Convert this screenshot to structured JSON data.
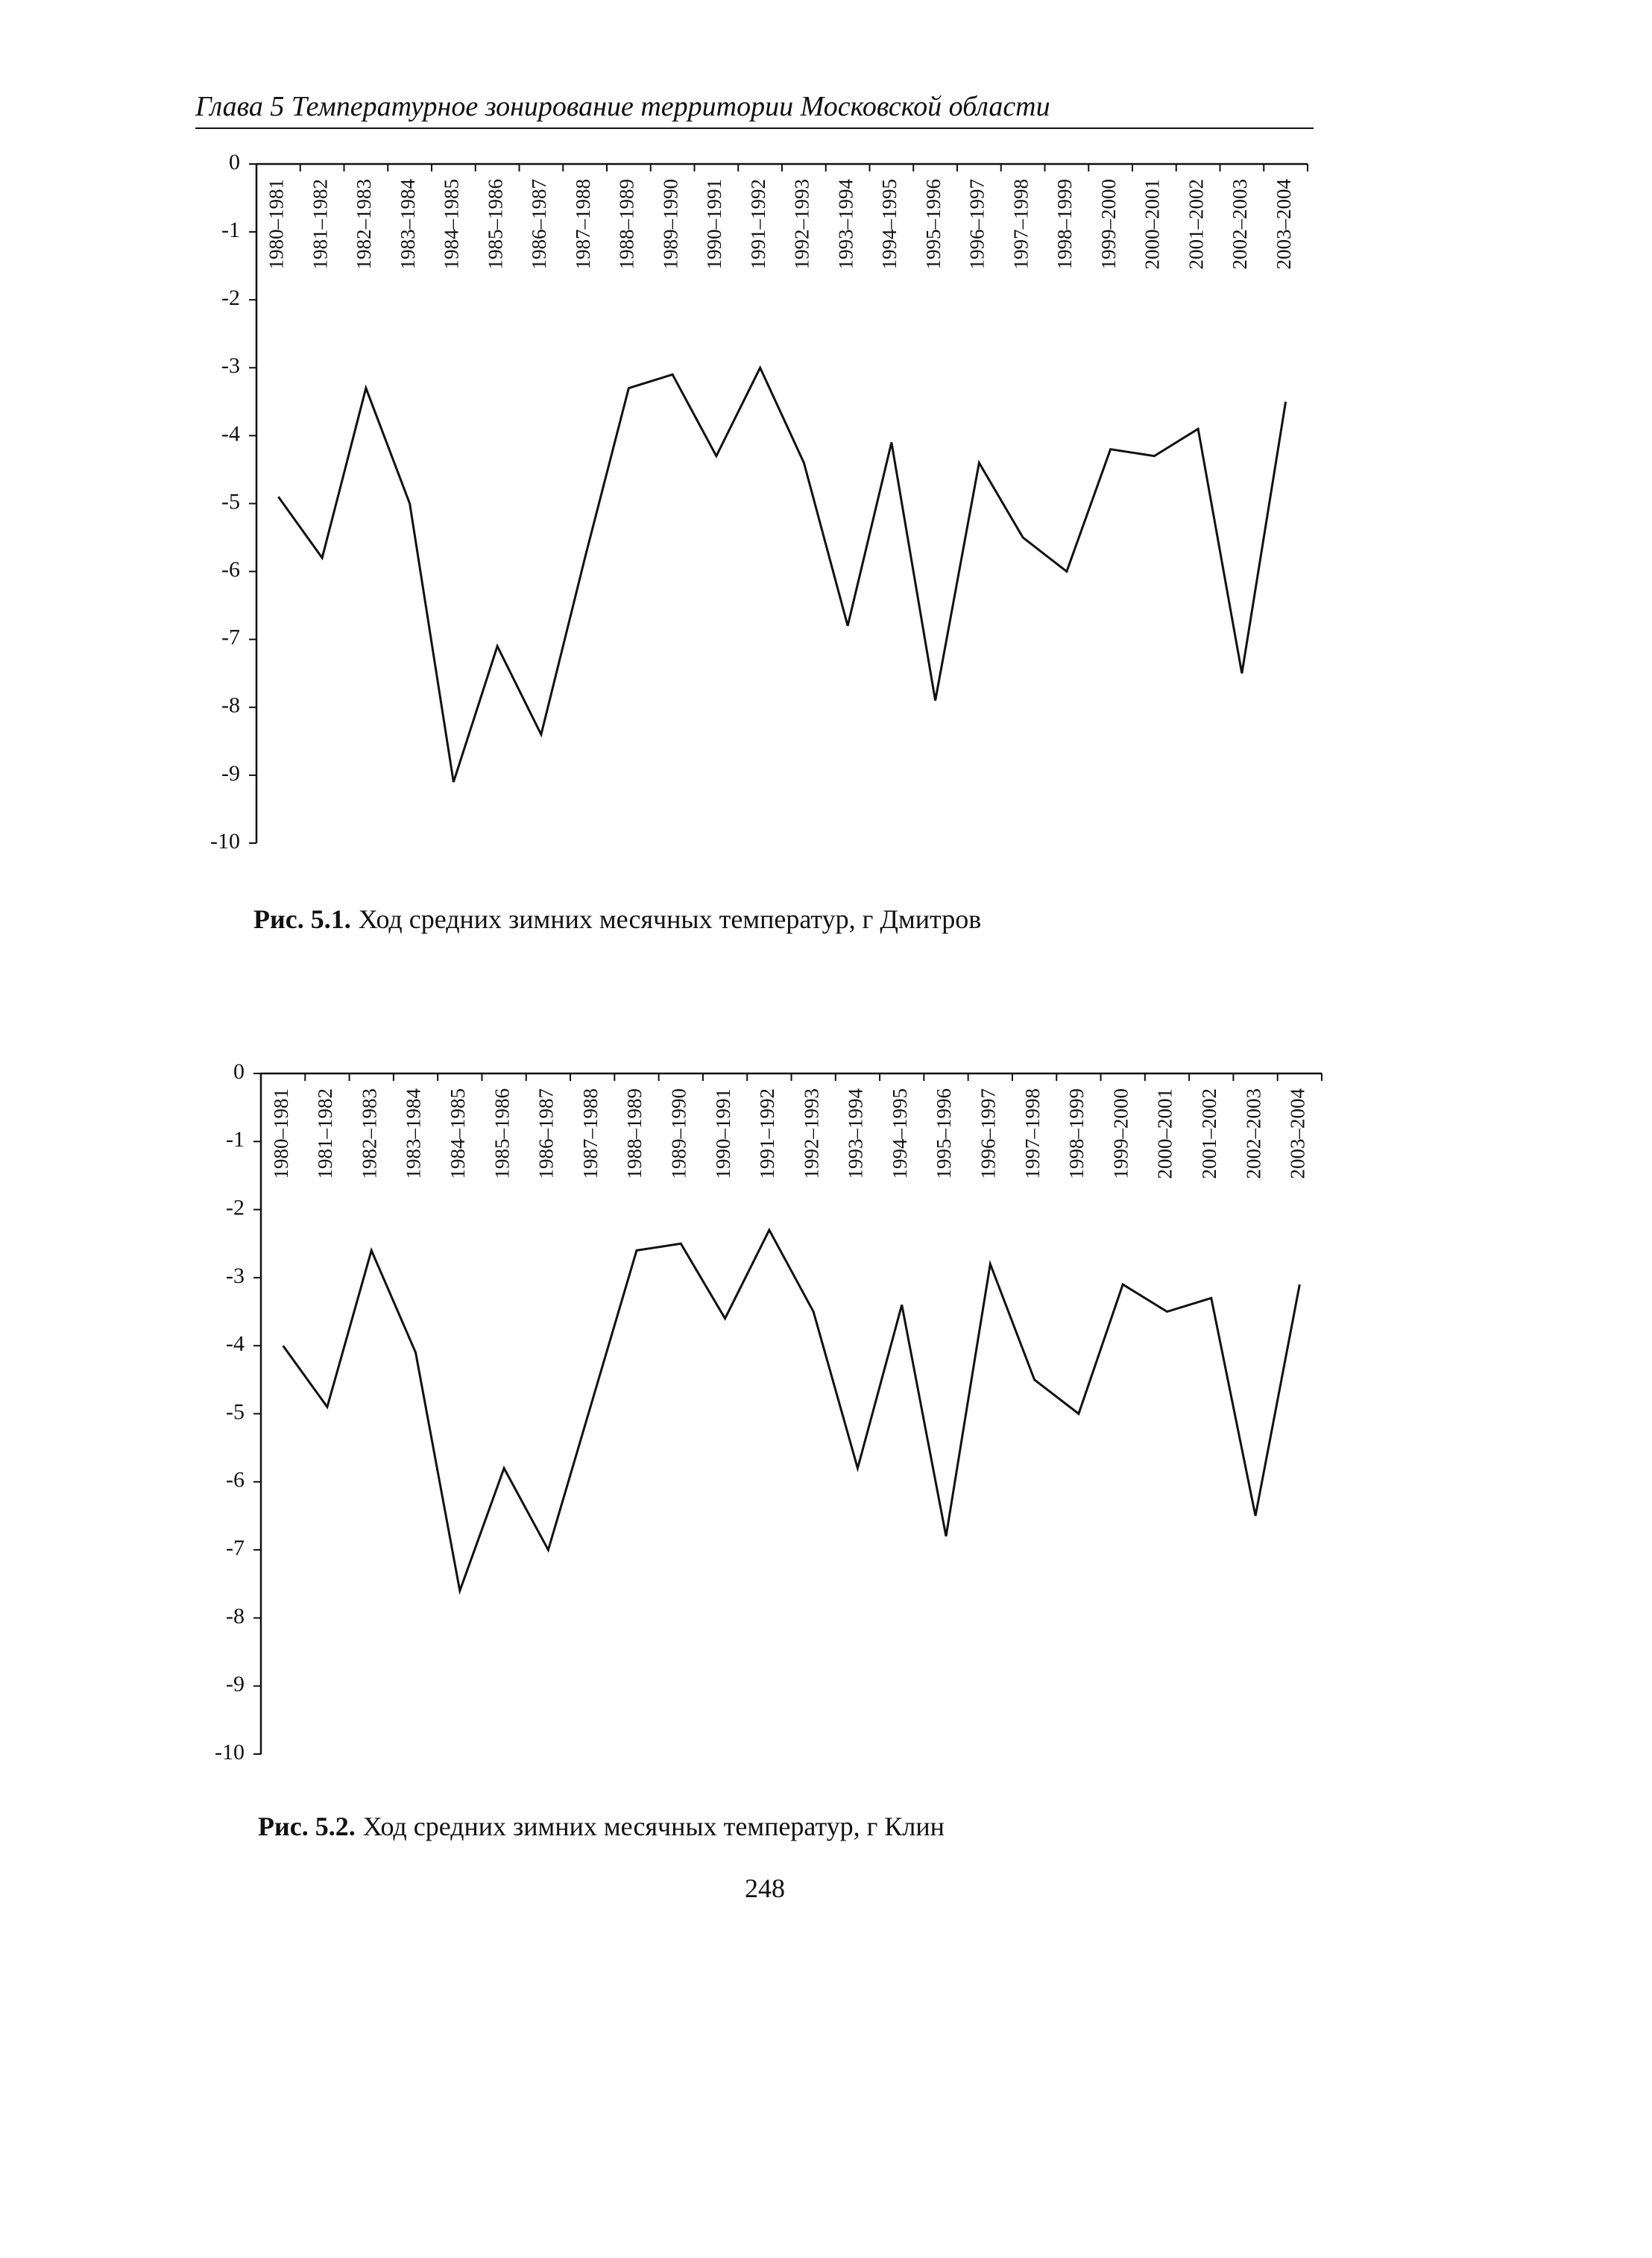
{
  "header": "Глава 5  Температурное зонирование территории Московской области",
  "page_number": "248",
  "chart_data": [
    {
      "type": "line",
      "caption_label": "Рис. 5.1.",
      "caption": "Ход средних зимних месячных температур, г  Дмитров",
      "categories": [
        "1980–1981",
        "1981–1982",
        "1982–1983",
        "1983–1984",
        "1984–1985",
        "1985–1986",
        "1986–1987",
        "1987–1988",
        "1988–1989",
        "1989–1990",
        "1990–1991",
        "1991–1992",
        "1992–1993",
        "1993–1994",
        "1994–1995",
        "1995–1996",
        "1996–1997",
        "1997–1998",
        "1998–1999",
        "1999–2000",
        "2000–2001",
        "2001–2002",
        "2002–2003",
        "2003–2004"
      ],
      "values": [
        -4.9,
        -5.8,
        -3.3,
        -5.0,
        -9.1,
        -7.1,
        -8.4,
        -5.8,
        -3.3,
        -3.1,
        -4.3,
        -3.0,
        -4.4,
        -6.8,
        -4.1,
        -7.9,
        -4.4,
        -5.5,
        -6.0,
        -4.2,
        -4.3,
        -3.9,
        -7.5,
        -3.5
      ],
      "color": "#111111",
      "ylim": [
        -10,
        0
      ],
      "yticks": [
        0,
        -1,
        -2,
        -3,
        -4,
        -5,
        -6,
        -7,
        -8,
        -9,
        -10
      ]
    },
    {
      "type": "line",
      "caption_label": "Рис. 5.2.",
      "caption": "Ход средних зимних месячных температур, г  Клин",
      "categories": [
        "1980–1981",
        "1981–1982",
        "1982–1983",
        "1983–1984",
        "1984–1985",
        "1985–1986",
        "1986–1987",
        "1987–1988",
        "1988–1989",
        "1989–1990",
        "1990–1991",
        "1991–1992",
        "1992–1993",
        "1993–1994",
        "1994–1995",
        "1995–1996",
        "1996–1997",
        "1997–1998",
        "1998–1999",
        "1999–2000",
        "2000–2001",
        "2001–2002",
        "2002–2003",
        "2003–2004"
      ],
      "values": [
        -4.0,
        -4.9,
        -2.6,
        -4.1,
        -7.6,
        -5.8,
        -7.0,
        -4.8,
        -2.6,
        -2.5,
        -3.6,
        -2.3,
        -3.5,
        -5.8,
        -3.4,
        -6.8,
        -2.8,
        -4.5,
        -5.0,
        -3.1,
        -3.5,
        -3.3,
        -6.5,
        -3.1
      ],
      "color": "#111111",
      "ylim": [
        -10,
        0
      ],
      "yticks": [
        0,
        -1,
        -2,
        -3,
        -4,
        -5,
        -6,
        -7,
        -8,
        -9,
        -10
      ]
    }
  ]
}
